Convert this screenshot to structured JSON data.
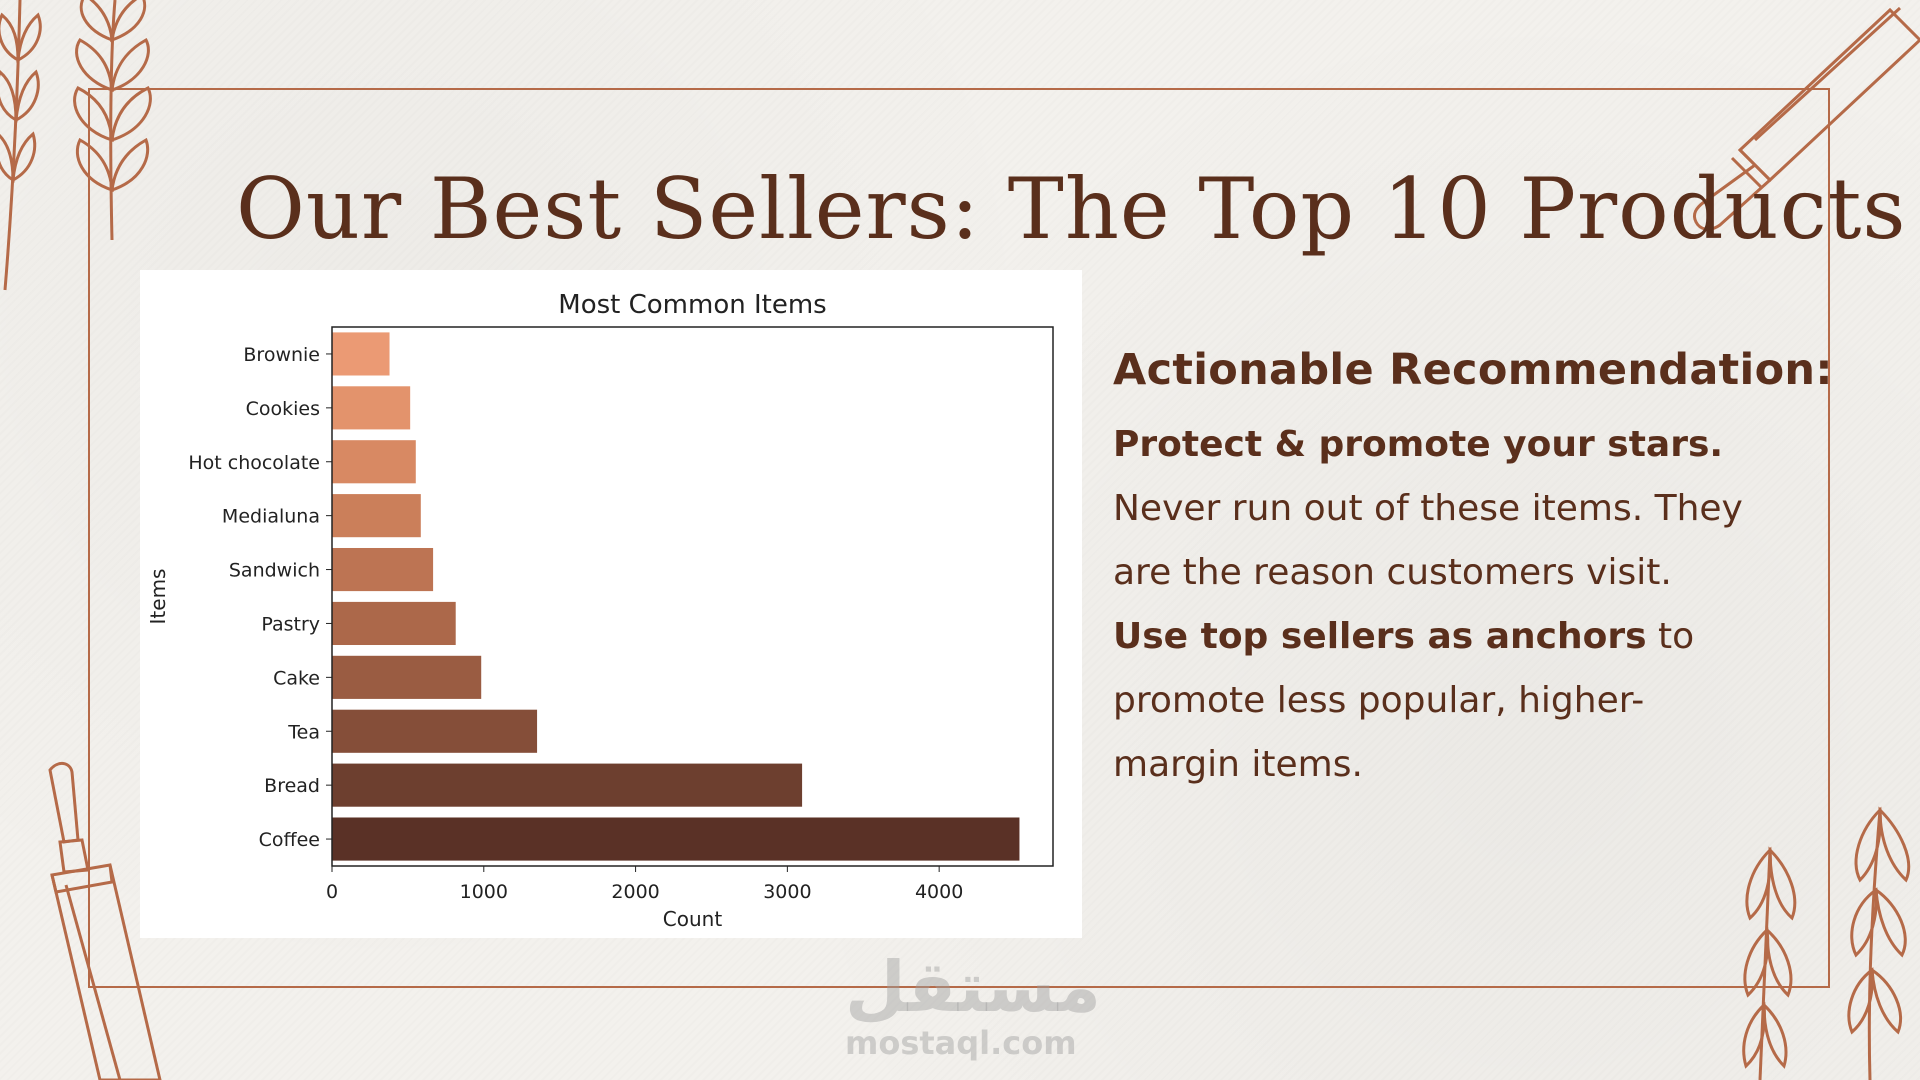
{
  "slide": {
    "title": "Our Best Sellers: The Top 10 Products"
  },
  "recommendation": {
    "heading": "Actionable Recommendation:",
    "point1_bold": "Protect & promote your stars.",
    "point1_line1": "Never run out of these items. They",
    "point1_line2": "are the reason customers visit.",
    "point2_bold": "Use top sellers as anchors",
    "point2_rest": " to",
    "point2_line2": "promote less popular, higher-",
    "point2_line3": "margin items."
  },
  "watermark": {
    "arabic": "مستقل",
    "latin": "mostaql.com"
  },
  "colors": {
    "accent": "#b56a48",
    "text": "#5a2f1c"
  },
  "chart_data": {
    "type": "bar",
    "orientation": "horizontal",
    "title": "Most Common Items",
    "xlabel": "Count",
    "ylabel": "Items",
    "categories": [
      "Brownie",
      "Cookies",
      "Hot chocolate",
      "Medialuna",
      "Sandwich",
      "Pastry",
      "Cake",
      "Tea",
      "Bread",
      "Coffee"
    ],
    "values": [
      379,
      515,
      552,
      585,
      666,
      815,
      983,
      1351,
      3097,
      4529
    ],
    "colors": [
      "#eb9a74",
      "#e3936c",
      "#d88963",
      "#cb7f5a",
      "#bd7453",
      "#ac684a",
      "#9a5c42",
      "#854e39",
      "#6d3f2f",
      "#5a3126"
    ],
    "xticks": [
      0,
      1000,
      2000,
      3000,
      4000
    ],
    "xlim": [
      0,
      4750
    ],
    "grid": false
  }
}
